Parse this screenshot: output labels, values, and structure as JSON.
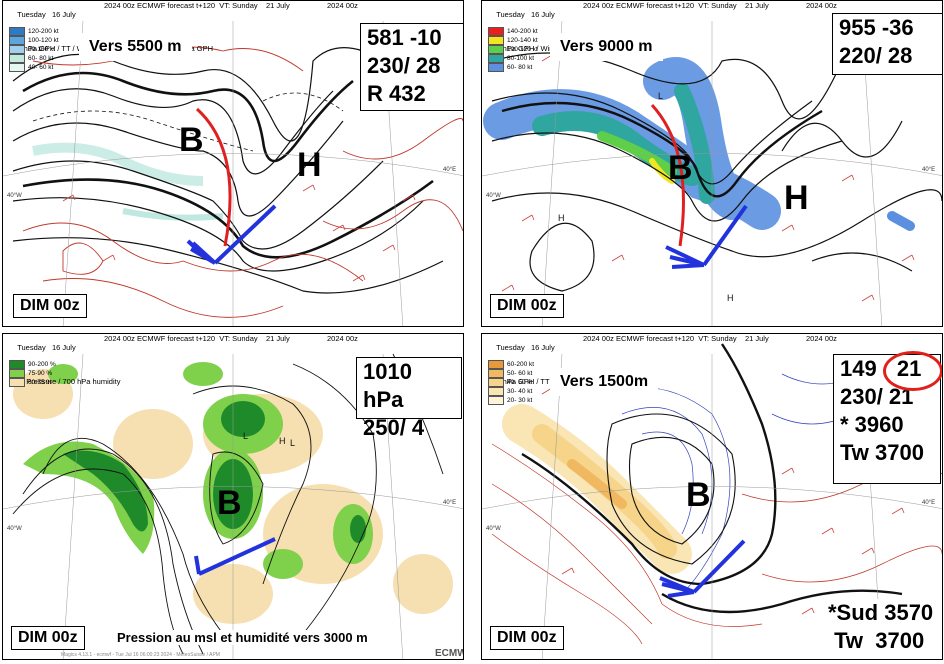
{
  "panels": {
    "p1": {
      "header_line1": "Tuesday   16 July",
      "header_line1_mid": "2024 00z ECMWF forecast t+120  VT: Sunday    21 July",
      "header_line1_right": "2024 00z",
      "header_line2": "500 hPa GPH / TT / Wind speed / Previous run 500 hPa GPH",
      "legend": [
        {
          "label": "120-200 kt",
          "color": "#2e7bc4"
        },
        {
          "label": "100-120 kt",
          "color": "#5aa6dd"
        },
        {
          "label": "80-100 kt",
          "color": "#9fd0ee"
        },
        {
          "label": "60- 80 kt",
          "color": "#c2eadf"
        },
        {
          "label": "40- 60 kt",
          "color": "#e6f7f0"
        }
      ],
      "vers": "Vers 5500 m",
      "values": [
        "581 -10",
        "230/ 28",
        "R 432"
      ],
      "dim": "DIM 00z",
      "low": "B",
      "high": "H"
    },
    "p2": {
      "header_line1": "Tuesday   16 July",
      "header_line1_mid": "2024 00z ECMWF forecast t+120  VT: Sunday    21 July",
      "header_line1_right": "2024 00z",
      "header_line2": "300 hPa GPH / Wind speed",
      "legend": [
        {
          "label": "140-200 kt",
          "color": "#e8211d"
        },
        {
          "label": "120-140 kt",
          "color": "#f4e61e"
        },
        {
          "label": "100-120 kt",
          "color": "#5fcf4a"
        },
        {
          "label": "80-100 kt",
          "color": "#2fa6a0"
        },
        {
          "label": "60- 80 kt",
          "color": "#5b90e0"
        }
      ],
      "vers": "Vers 9000 m",
      "values": [
        "955 -36",
        "220/ 28"
      ],
      "dim": "DIM 00z",
      "low": "B",
      "high": "H"
    },
    "p3": {
      "header_line1": "Tuesday   16 July",
      "header_line1_mid": "2024 00z ECMWF forecast t+120  VT: Sunday    21 July",
      "header_line1_right": "2024 00z",
      "header_line2": "MSL Pressure / 700 hPa humidity",
      "legend": [
        {
          "label": "90-200 %",
          "color": "#1f8a2a"
        },
        {
          "label": "75-90 %",
          "color": "#7fd04a"
        },
        {
          "label": "60-75 %",
          "color": "#f6dfb0"
        }
      ],
      "values": [
        "1010 hPa",
        "250/  4"
      ],
      "dim": "DIM 00z",
      "caption": "Pression au msl et humidité vers 3000 m",
      "low": "B",
      "footer": "Magics 4.13.1 - ecmwf - Tue Jul 16 06:00:23 2024 - MeteoSuisse / APM",
      "logo": "ECMWF"
    },
    "p4": {
      "header_line1": "Tuesday   16 July",
      "header_line1_mid": "2024 00z ECMWF forecast t+120  VT: Sunday    21 July",
      "header_line1_right": "2024 00z",
      "header_line2": "850 hPa GPH / TT / Wind speed",
      "legend": [
        {
          "label": "60-200 kt",
          "color": "#e79a3a"
        },
        {
          "label": "50- 60 kt",
          "color": "#f0b860"
        },
        {
          "label": "40- 50 kt",
          "color": "#f6d48a"
        },
        {
          "label": "30- 40 kt",
          "color": "#fae6b4"
        },
        {
          "label": "20- 30 kt",
          "color": "#fdf3dc"
        }
      ],
      "vers": "Vers 1500m",
      "values_first": "149",
      "values_circled": "21",
      "values": [
        "230/ 21",
        "*    3960",
        "Tw 3700"
      ],
      "bottom_values": [
        "*Sud 3570",
        " Tw  3700"
      ],
      "dim": "DIM 00z",
      "low": "B"
    }
  },
  "colors": {
    "contour": "#111111",
    "temp": "#c0392b",
    "wind_barb": "#d04040",
    "trough": "#e02020",
    "arrow": "#2233dd",
    "circle": "#e0201a"
  }
}
